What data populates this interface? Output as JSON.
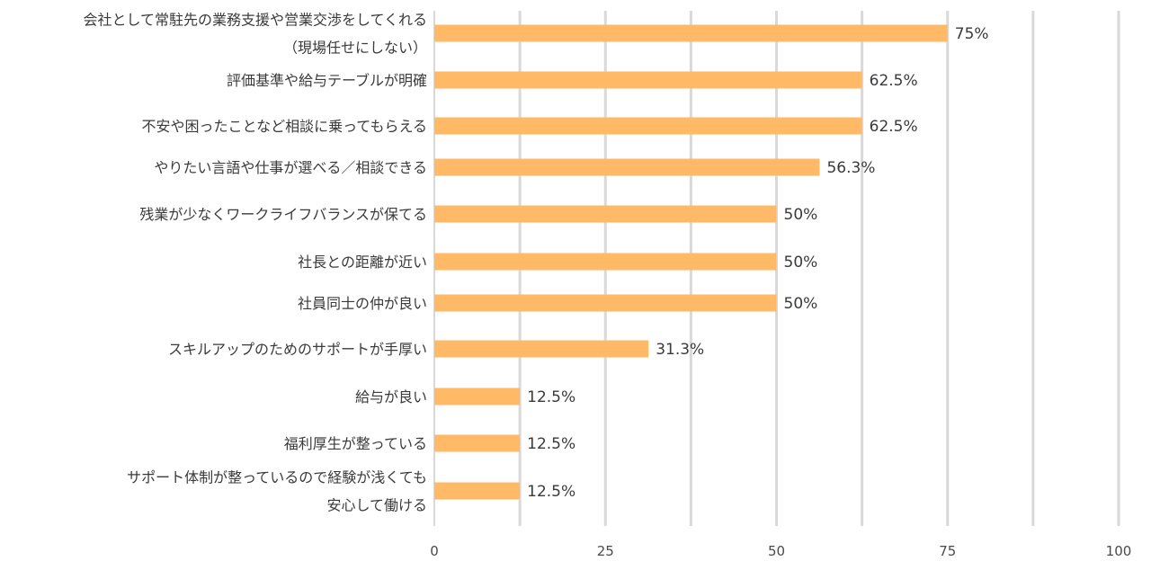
{
  "chart_data": {
    "type": "bar",
    "orientation": "horizontal",
    "categories": [
      [
        "会社として常駐先の業務支援や営業交渉をしてくれる",
        "（現場任せにしない）"
      ],
      [
        "評価基準や給与テーブルが明確"
      ],
      [
        "不安や困ったことなど相談に乗ってもらえる"
      ],
      [
        "やりたい言語や仕事が選べる／相談できる"
      ],
      [
        "残業が少なくワークライフバランスが保てる"
      ],
      [
        "社長との距離が近い"
      ],
      [
        "社員同士の仲が良い"
      ],
      [
        "スキルアップのためのサポートが手厚い"
      ],
      [
        "給与が良い"
      ],
      [
        "福利厚生が整っている"
      ],
      [
        "サポート体制が整っているので経験が浅くても",
        "安心して働ける"
      ]
    ],
    "values": [
      75,
      62.5,
      62.5,
      56.3,
      50,
      50,
      50,
      31.3,
      12.5,
      12.5,
      12.5
    ],
    "value_labels": [
      "75%",
      "62.5%",
      "62.5%",
      "56.3%",
      "50%",
      "50%",
      "50%",
      "31.3%",
      "12.5%",
      "12.5%",
      "12.5%"
    ],
    "xlim": [
      0,
      100
    ],
    "x_ticks": [
      0,
      25,
      50,
      75,
      100
    ],
    "x_tick_labels": [
      "0",
      "25",
      "50",
      "75",
      "100"
    ],
    "grid": true,
    "bar_color": "#ffb967",
    "title": "",
    "xlabel": "",
    "ylabel": ""
  }
}
